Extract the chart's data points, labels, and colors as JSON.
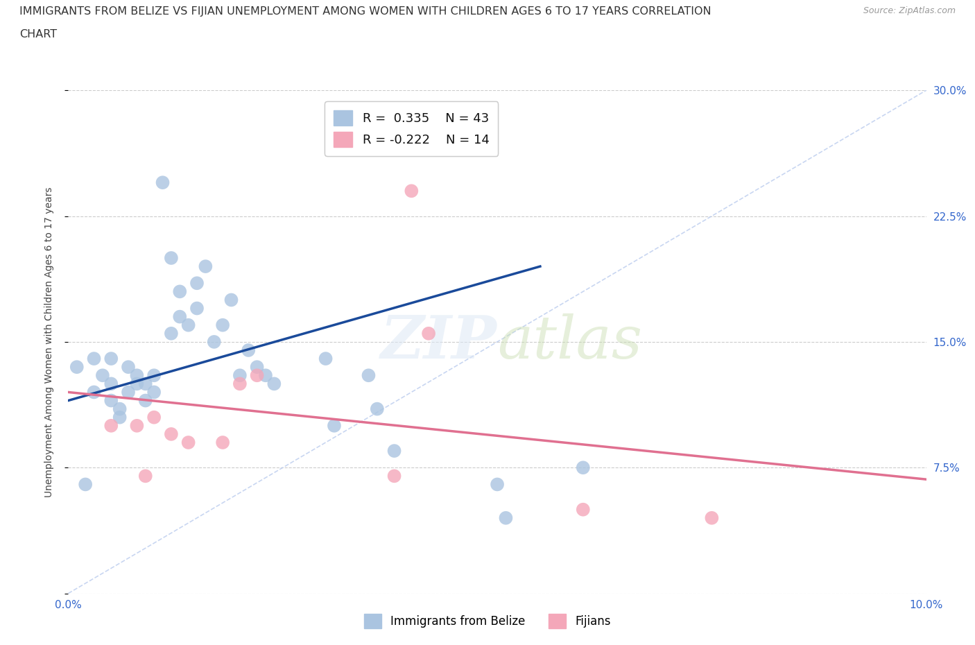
{
  "title_line1": "IMMIGRANTS FROM BELIZE VS FIJIAN UNEMPLOYMENT AMONG WOMEN WITH CHILDREN AGES 6 TO 17 YEARS CORRELATION",
  "title_line2": "CHART",
  "source_text": "Source: ZipAtlas.com",
  "ylabel": "Unemployment Among Women with Children Ages 6 to 17 years",
  "x_min": 0.0,
  "x_max": 0.1,
  "y_min": 0.0,
  "y_max": 0.3,
  "x_ticks": [
    0.0,
    0.02,
    0.04,
    0.06,
    0.08,
    0.1
  ],
  "y_ticks": [
    0.0,
    0.075,
    0.15,
    0.225,
    0.3
  ],
  "y_tick_labels_right": [
    "",
    "7.5%",
    "15.0%",
    "22.5%",
    "30.0%"
  ],
  "grid_color": "#cccccc",
  "blue_color": "#aac4e0",
  "pink_color": "#f4a7b9",
  "blue_line_color": "#1a4a9a",
  "pink_line_color": "#e07090",
  "diag_line_color": "#bbccee",
  "legend_blue_r": "0.335",
  "legend_blue_n": "43",
  "legend_pink_r": "-0.222",
  "legend_pink_n": "14",
  "legend_label_blue": "Immigrants from Belize",
  "legend_label_pink": "Fijians",
  "blue_points_x": [
    0.001,
    0.002,
    0.003,
    0.003,
    0.004,
    0.005,
    0.005,
    0.005,
    0.006,
    0.006,
    0.007,
    0.007,
    0.008,
    0.008,
    0.009,
    0.009,
    0.01,
    0.01,
    0.011,
    0.012,
    0.013,
    0.013,
    0.014,
    0.015,
    0.015,
    0.016,
    0.017,
    0.018,
    0.019,
    0.02,
    0.021,
    0.022,
    0.023,
    0.024,
    0.03,
    0.031,
    0.035,
    0.036,
    0.038,
    0.05,
    0.051,
    0.06,
    0.012
  ],
  "blue_points_y": [
    0.135,
    0.065,
    0.12,
    0.14,
    0.13,
    0.115,
    0.125,
    0.14,
    0.105,
    0.11,
    0.12,
    0.135,
    0.125,
    0.13,
    0.115,
    0.125,
    0.12,
    0.13,
    0.245,
    0.155,
    0.165,
    0.18,
    0.16,
    0.17,
    0.185,
    0.195,
    0.15,
    0.16,
    0.175,
    0.13,
    0.145,
    0.135,
    0.13,
    0.125,
    0.14,
    0.1,
    0.13,
    0.11,
    0.085,
    0.065,
    0.045,
    0.075,
    0.2
  ],
  "pink_points_x": [
    0.005,
    0.008,
    0.009,
    0.01,
    0.012,
    0.014,
    0.018,
    0.02,
    0.022,
    0.038,
    0.04,
    0.042,
    0.06,
    0.075
  ],
  "pink_points_y": [
    0.1,
    0.1,
    0.07,
    0.105,
    0.095,
    0.09,
    0.09,
    0.125,
    0.13,
    0.07,
    0.24,
    0.155,
    0.05,
    0.045
  ],
  "blue_trend_x": [
    0.0,
    0.055
  ],
  "blue_trend_y": [
    0.115,
    0.195
  ],
  "pink_trend_x": [
    0.0,
    0.1
  ],
  "pink_trend_y": [
    0.12,
    0.068
  ]
}
